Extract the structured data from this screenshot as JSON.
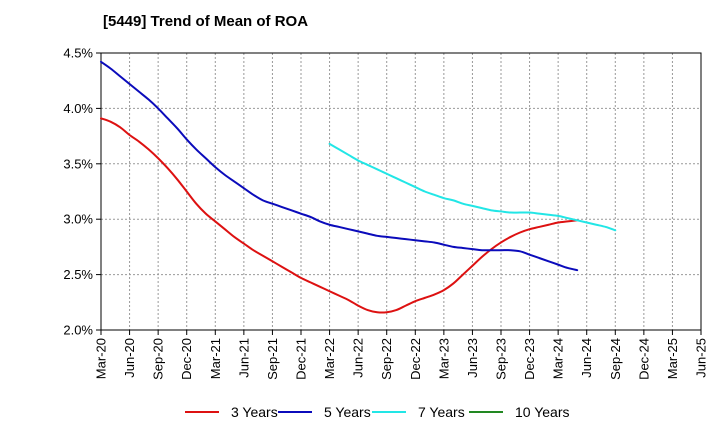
{
  "chart_data": {
    "type": "line",
    "title": "[5449]  Trend of Mean of ROA",
    "xlabel": "",
    "ylabel": "",
    "ylim": [
      2.0,
      4.5
    ],
    "y_ticks": [
      "2.0%",
      "2.5%",
      "3.0%",
      "3.5%",
      "4.0%",
      "4.5%"
    ],
    "y_tick_values": [
      2.0,
      2.5,
      3.0,
      3.5,
      4.0,
      4.5
    ],
    "x_ticks": [
      "Mar-20",
      "Jun-20",
      "Sep-20",
      "Dec-20",
      "Mar-21",
      "Jun-21",
      "Sep-21",
      "Dec-21",
      "Mar-22",
      "Jun-22",
      "Sep-22",
      "Dec-22",
      "Mar-23",
      "Jun-23",
      "Sep-23",
      "Dec-23",
      "Mar-24",
      "Jun-24",
      "Sep-24",
      "Dec-24",
      "Mar-25",
      "Jun-25"
    ],
    "grid": true,
    "legend_position": "bottom",
    "series": [
      {
        "name": "3 Years",
        "color": "#dd1111",
        "start_index": 0,
        "values": [
          3.91,
          3.88,
          3.83,
          3.76,
          3.7,
          3.63,
          3.55,
          3.46,
          3.36,
          3.25,
          3.14,
          3.05,
          2.98,
          2.91,
          2.84,
          2.78,
          2.72,
          2.67,
          2.62,
          2.57,
          2.52,
          2.47,
          2.43,
          2.39,
          2.35,
          2.31,
          2.27,
          2.22,
          2.18,
          2.16,
          2.16,
          2.18,
          2.22,
          2.26,
          2.29,
          2.32,
          2.36,
          2.42,
          2.5,
          2.58,
          2.66,
          2.73,
          2.79,
          2.84,
          2.88,
          2.91,
          2.93,
          2.95,
          2.97,
          2.98,
          2.99
        ]
      },
      {
        "name": "5 Years",
        "color": "#0b0bbb",
        "start_index": 0,
        "values": [
          4.42,
          4.36,
          4.29,
          4.22,
          4.15,
          4.08,
          4.0,
          3.91,
          3.82,
          3.72,
          3.63,
          3.55,
          3.47,
          3.4,
          3.34,
          3.28,
          3.22,
          3.17,
          3.14,
          3.11,
          3.08,
          3.05,
          3.02,
          2.98,
          2.95,
          2.93,
          2.91,
          2.89,
          2.87,
          2.85,
          2.84,
          2.83,
          2.82,
          2.81,
          2.8,
          2.79,
          2.77,
          2.75,
          2.74,
          2.73,
          2.72,
          2.72,
          2.72,
          2.72,
          2.71,
          2.68,
          2.65,
          2.62,
          2.59,
          2.56,
          2.54
        ]
      },
      {
        "name": "7 Years",
        "color": "#22e6e6",
        "start_index": 24,
        "values": [
          3.68,
          3.63,
          3.58,
          3.53,
          3.49,
          3.45,
          3.41,
          3.37,
          3.33,
          3.29,
          3.25,
          3.22,
          3.19,
          3.17,
          3.14,
          3.12,
          3.1,
          3.08,
          3.07,
          3.06,
          3.06,
          3.06,
          3.05,
          3.04,
          3.03,
          3.01,
          2.99,
          2.97,
          2.95,
          2.93,
          2.9
        ]
      },
      {
        "name": "10 Years",
        "color": "#228822",
        "start_index": 0,
        "values": []
      }
    ]
  }
}
